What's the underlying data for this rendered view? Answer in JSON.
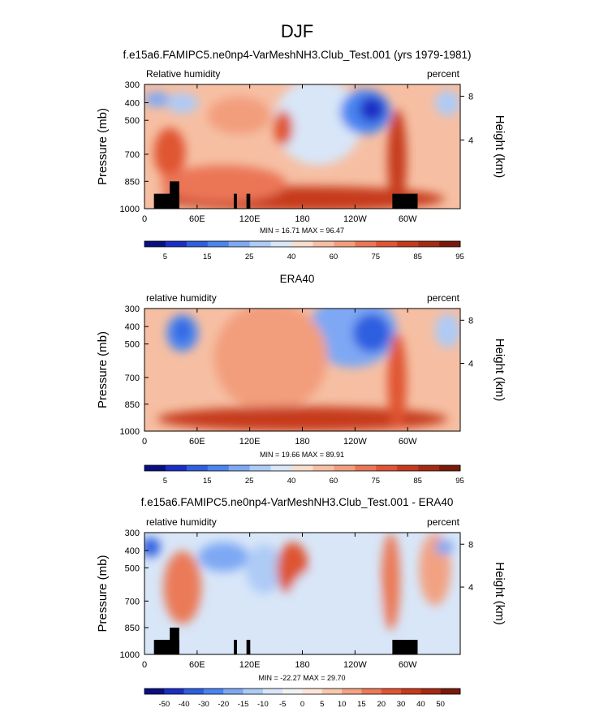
{
  "figure": {
    "title": "DJF"
  },
  "panels": [
    {
      "title": "f.e15a6.FAMIPC5.ne0np4-VarMeshNH3.Club_Test.001 (yrs 1979-1981)",
      "left_label": "Relative humidity",
      "right_label": "percent",
      "stats": "MIN =  16.71   MAX =  96.47",
      "colorbar_labels": [
        "5",
        "15",
        "25",
        "40",
        "60",
        "75",
        "85",
        "95"
      ]
    },
    {
      "title": "ERA40",
      "left_label": "relative humidity",
      "right_label": "percent",
      "stats": "MIN =  19.66   MAX =  89.91",
      "colorbar_labels": [
        "5",
        "15",
        "25",
        "40",
        "60",
        "75",
        "85",
        "95"
      ]
    },
    {
      "title": "f.e15a6.FAMIPC5.ne0np4-VarMeshNH3.Club_Test.001 - ERA40",
      "left_label": "relative humidity",
      "right_label": "percent",
      "stats": "MIN = -22.27   MAX =  29.70",
      "colorbar_labels": [
        "-50",
        "-40",
        "-30",
        "-20",
        "-15",
        "-10",
        "-5",
        "0",
        "5",
        "10",
        "15",
        "20",
        "30",
        "40",
        "50"
      ]
    }
  ],
  "axes": {
    "y_label": "Pressure (mb)",
    "y2_label": "Height (km)",
    "y_ticks": [
      "300",
      "400",
      "500",
      "700",
      "850",
      "1000"
    ],
    "y2_ticks": [
      "8",
      "4"
    ],
    "x_ticks": [
      "0",
      "60E",
      "120E",
      "180",
      "120W",
      "60W"
    ]
  },
  "colors": {
    "abs_scale": [
      "#0a0f80",
      "#1a2ec4",
      "#2f5ee0",
      "#4a84f0",
      "#7ea8f4",
      "#aecbf6",
      "#d8e6f8",
      "#f7ddcc",
      "#f6bfa3",
      "#f29e7d",
      "#eb7656",
      "#e05433",
      "#c63a1c",
      "#a52a12",
      "#7a1a0a"
    ],
    "diff_scale": [
      "#0a0f80",
      "#1a2ec4",
      "#2f5ee0",
      "#4a84f0",
      "#7ea8f4",
      "#aecbf6",
      "#d8e6f8",
      "#f2f2f2",
      "#fce5d8",
      "#f8c8ae",
      "#f2a283",
      "#ea7a58",
      "#de5533",
      "#c73a1c",
      "#a52a12",
      "#7a1a0a"
    ],
    "topography": "#000000"
  },
  "chart_data": [
    {
      "type": "heatmap",
      "title": "f.e15a6.FAMIPC5.ne0np4-VarMeshNH3.Club_Test.001 (yrs 1979-1981)",
      "field": "Relative humidity",
      "units": "percent",
      "x_ticks": [
        "0",
        "60E",
        "120E",
        "180",
        "120W",
        "60W"
      ],
      "y_ticks": [
        300,
        400,
        500,
        700,
        850,
        1000
      ],
      "ylabel": "Pressure (mb)",
      "y2label": "Height (km)",
      "min": 16.71,
      "max": 96.47,
      "contour_levels": [
        5,
        15,
        25,
        40,
        60,
        75,
        85,
        95
      ]
    },
    {
      "type": "heatmap",
      "title": "ERA40",
      "field": "relative humidity",
      "units": "percent",
      "x_ticks": [
        "0",
        "60E",
        "120E",
        "180",
        "120W",
        "60W"
      ],
      "y_ticks": [
        300,
        400,
        500,
        700,
        850,
        1000
      ],
      "ylabel": "Pressure (mb)",
      "y2label": "Height (km)",
      "min": 19.66,
      "max": 89.91,
      "contour_levels": [
        5,
        15,
        25,
        40,
        60,
        75,
        85,
        95
      ]
    },
    {
      "type": "heatmap",
      "title": "f.e15a6.FAMIPC5.ne0np4-VarMeshNH3.Club_Test.001 - ERA40",
      "field": "relative humidity",
      "units": "percent",
      "x_ticks": [
        "0",
        "60E",
        "120E",
        "180",
        "120W",
        "60W"
      ],
      "y_ticks": [
        300,
        400,
        500,
        700,
        850,
        1000
      ],
      "ylabel": "Pressure (mb)",
      "y2label": "Height (km)",
      "min": -22.27,
      "max": 29.7,
      "contour_levels": [
        -50,
        -40,
        -30,
        -20,
        -15,
        -10,
        -5,
        0,
        5,
        10,
        15,
        20,
        30,
        40,
        50
      ]
    }
  ]
}
